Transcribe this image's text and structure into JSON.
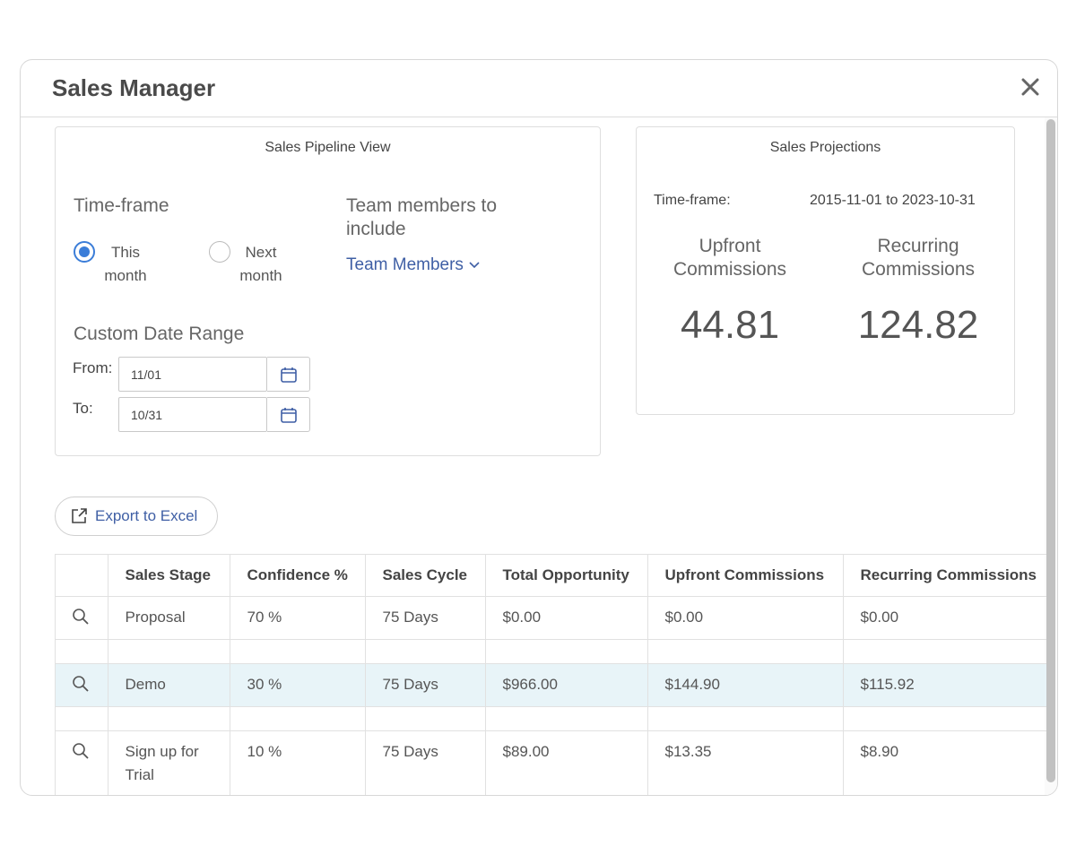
{
  "modal": {
    "title": "Sales Manager"
  },
  "pipeline": {
    "title": "Sales Pipeline View",
    "timeframe_label": "Time-frame",
    "options": [
      {
        "line1": "This",
        "line2": "month",
        "checked": true
      },
      {
        "line1": "Next",
        "line2": "month",
        "checked": false
      }
    ],
    "team_label": "Team members to include",
    "team_link": "Team Members",
    "custom_label": "Custom Date Range",
    "from_label": "From:",
    "from_value": "11/01",
    "to_label": "To:",
    "to_value": "10/31"
  },
  "projections": {
    "title": "Sales Projections",
    "timeframe_label": "Time-frame:",
    "timeframe_value": "2015-11-01 to 2023-10-31",
    "upfront_label": "Upfront Commissions",
    "recurring_label": "Recurring Commissions",
    "upfront_value": "44.81",
    "recurring_value": "124.82"
  },
  "export_label": "Export to Excel",
  "table": {
    "headers": [
      "",
      "Sales Stage",
      "Confidence %",
      "Sales Cycle",
      "Total Opportunity",
      "Upfront Commissions",
      "Recurring Commissions"
    ],
    "rows": [
      {
        "stage": "Proposal",
        "confidence": "70 %",
        "cycle": "75 Days",
        "total": "$0.00",
        "upfront": "$0.00",
        "recurring": "$0.00"
      },
      {
        "stage": "Demo",
        "confidence": "30 %",
        "cycle": "75 Days",
        "total": "$966.00",
        "upfront": "$144.90",
        "recurring": "$115.92"
      },
      {
        "stage": "Sign up for Trial",
        "confidence": "10 %",
        "cycle": "75 Days",
        "total": "$89.00",
        "upfront": "$13.35",
        "recurring": "$8.90"
      }
    ]
  },
  "colors": {
    "accent": "#3b7dd8",
    "link": "#3f5fa5",
    "row_highlight": "#e8f4f8"
  }
}
